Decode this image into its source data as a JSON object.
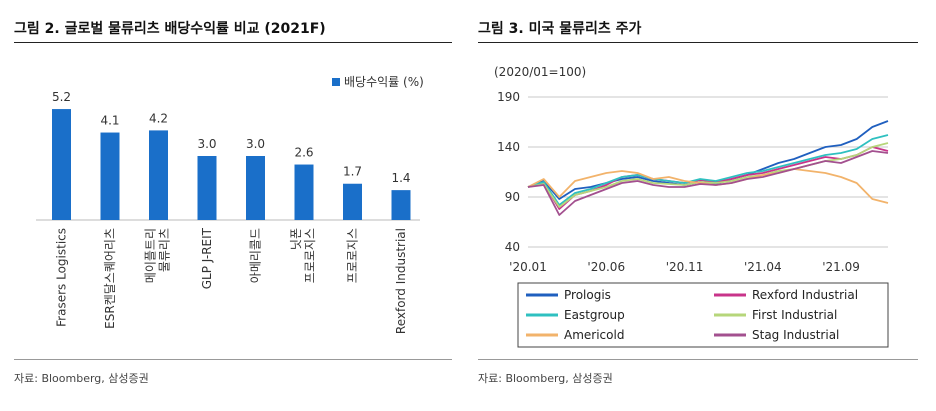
{
  "left": {
    "title": "그림 2. 글로벌 물류리츠 배당수익률 비교 (2021F)",
    "source": "자료: Bloomberg, 삼성증권"
  },
  "right": {
    "title": "그림 3. 미국 물류리츠 주가",
    "source": "자료: Bloomberg, 삼성증권"
  },
  "chart_data": [
    {
      "type": "bar",
      "title": "",
      "categories": [
        "Frasers Logistics",
        "ESR켄달스퀘어리츠",
        "메이플트리 물류리츠",
        "GLP J-REIT",
        "아메리콜드",
        "닛폰 프로로지스",
        "프로로지스",
        "Rexford Industrial"
      ],
      "series": [
        {
          "name": "배당수익률 (%)",
          "values": [
            5.2,
            4.1,
            4.2,
            3.0,
            3.0,
            2.6,
            1.7,
            1.4
          ]
        }
      ],
      "value_labels": [
        "5.2",
        "4.1",
        "4.2",
        "3.0",
        "3.0",
        "2.6",
        "1.7",
        "1.4"
      ],
      "ylim": [
        0,
        6
      ],
      "grid": false,
      "legend_position": "top-right",
      "color": "#1a6fc9"
    },
    {
      "type": "line",
      "title": "",
      "ylabel": "(2020/01=100)",
      "ylim": [
        40,
        190
      ],
      "yticks": [
        40,
        90,
        140,
        190
      ],
      "x_ticks": [
        "'20.01",
        "'20.06",
        "'20.11",
        "'21.04",
        "'21.09"
      ],
      "x": [
        "2020-01",
        "2020-02",
        "2020-03",
        "2020-04",
        "2020-05",
        "2020-06",
        "2020-07",
        "2020-08",
        "2020-09",
        "2020-10",
        "2020-11",
        "2020-12",
        "2021-01",
        "2021-02",
        "2021-03",
        "2021-04",
        "2021-05",
        "2021-06",
        "2021-07",
        "2021-08",
        "2021-09",
        "2021-10",
        "2021-11",
        "2021-12"
      ],
      "grid": true,
      "legend_position": "bottom",
      "series": [
        {
          "name": "Prologis",
          "color": "#1f5fbf",
          "values": [
            100,
            106,
            88,
            98,
            100,
            104,
            108,
            110,
            106,
            104,
            102,
            105,
            103,
            108,
            112,
            118,
            124,
            128,
            134,
            140,
            142,
            148,
            160,
            166
          ]
        },
        {
          "name": "Rexford Industrial",
          "color": "#c8348a",
          "values": [
            100,
            104,
            78,
            92,
            96,
            102,
            110,
            112,
            108,
            106,
            104,
            107,
            105,
            108,
            112,
            114,
            118,
            122,
            126,
            130,
            128,
            132,
            140,
            136
          ]
        },
        {
          "name": "Eastgroup",
          "color": "#2fc0c0",
          "values": [
            100,
            105,
            82,
            94,
            98,
            104,
            110,
            112,
            108,
            106,
            104,
            108,
            106,
            110,
            114,
            116,
            120,
            124,
            128,
            132,
            134,
            138,
            148,
            152
          ]
        },
        {
          "name": "First Industrial",
          "color": "#b6d67a",
          "values": [
            100,
            103,
            80,
            92,
            96,
            100,
            106,
            108,
            104,
            103,
            102,
            105,
            104,
            106,
            110,
            112,
            116,
            118,
            122,
            126,
            128,
            132,
            140,
            144
          ]
        },
        {
          "name": "Americold",
          "color": "#f2b36b",
          "values": [
            100,
            108,
            90,
            106,
            110,
            114,
            116,
            114,
            108,
            110,
            106,
            104,
            102,
            104,
            108,
            112,
            114,
            118,
            116,
            114,
            110,
            104,
            88,
            84
          ]
        },
        {
          "name": "Stag Industrial",
          "color": "#a3508f",
          "values": [
            100,
            102,
            72,
            86,
            92,
            98,
            104,
            106,
            102,
            100,
            100,
            103,
            102,
            104,
            108,
            110,
            114,
            118,
            122,
            126,
            124,
            130,
            136,
            134
          ]
        }
      ]
    }
  ]
}
